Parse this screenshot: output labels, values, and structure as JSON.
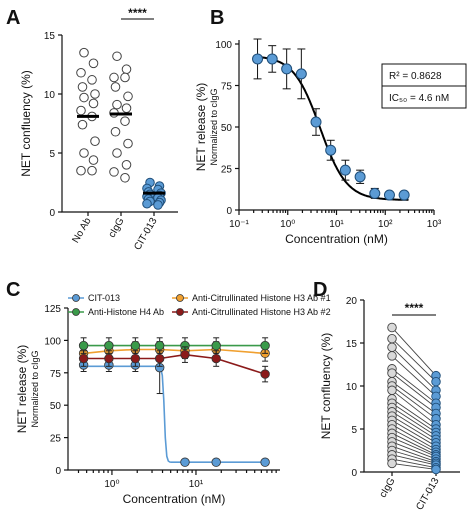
{
  "chart_data": [
    {
      "panel_letter": "A",
      "type": "scatter",
      "ylabel": "NET confluency (%)",
      "ylim": [
        0,
        15
      ],
      "yticks": [
        "0",
        "5",
        "10",
        "15"
      ],
      "categories": [
        "No Ab",
        "cIgG",
        "CIT-013"
      ],
      "significance": "****",
      "means": [
        8.1,
        8.3,
        1.6
      ],
      "points": [
        [
          13.5,
          12.6,
          11.8,
          11.2,
          10.6,
          10.0,
          9.7,
          9.2,
          8.6,
          8.1,
          7.4,
          6.0,
          5.0,
          4.4,
          3.5,
          3.5
        ],
        [
          13.2,
          12.1,
          11.4,
          11.4,
          10.6,
          9.8,
          9.1,
          8.8,
          8.4,
          7.7,
          6.8,
          5.8,
          5.0,
          4.0,
          3.4,
          2.9
        ],
        [
          2.5,
          2.2,
          2.0,
          1.9,
          1.7,
          1.6,
          1.5,
          1.4,
          1.3,
          1.2,
          1.1,
          1.0,
          0.9,
          0.8,
          0.7,
          0.6
        ]
      ]
    },
    {
      "panel_letter": "B",
      "type": "line",
      "xlabel": "Concentration (nM)",
      "ylabel": "NET release (%)",
      "ylabel_sub": "Normalized to cIgG",
      "xscale": "log",
      "xlim": [
        0.1,
        1000
      ],
      "ylim": [
        0,
        100
      ],
      "xticks": [
        "10⁻¹",
        "10⁰",
        "10¹",
        "10²",
        "10³"
      ],
      "yticks": [
        "0",
        "25",
        "50",
        "75",
        "100"
      ],
      "r2_text": "R² = 0.8628",
      "ic50_text": "IC₅₀ = 4.6 nM",
      "x": [
        0.24,
        0.48,
        0.95,
        1.9,
        3.8,
        7.6,
        15.2,
        30.5,
        61,
        122,
        244
      ],
      "y": [
        91,
        91,
        85,
        82,
        53,
        36,
        24,
        20,
        10,
        9,
        9
      ],
      "err": [
        12,
        8,
        12,
        15,
        8,
        6,
        6,
        4,
        3,
        2,
        2
      ],
      "fit": {
        "top": 93,
        "bottom": 6,
        "ic50": 4.6,
        "hill": 1.6
      }
    },
    {
      "panel_letter": "C",
      "type": "line",
      "xlabel": "Concentration (nM)",
      "ylabel": "NET release (%)",
      "ylabel_sub": "Normalized to cIgG",
      "xscale": "log",
      "xlim": [
        0.3,
        100
      ],
      "ylim": [
        0,
        125
      ],
      "xticks": [
        "10⁰",
        "10¹"
      ],
      "yticks": [
        "0",
        "25",
        "50",
        "75",
        "100",
        "125"
      ],
      "series": [
        {
          "name": "CIT-013",
          "color": "#5b9bd5",
          "x": [
            0.46,
            0.92,
            1.9,
            3.7,
            7.4,
            17.4,
            66.5
          ],
          "y": [
            81,
            81,
            81,
            79,
            6,
            6,
            6
          ],
          "err": [
            5,
            5,
            5,
            20,
            1,
            1,
            1
          ],
          "step": 4.2
        },
        {
          "name": "Anti-Citrullinated Histone H3 Ab #1",
          "color": "#f0a030",
          "x": [
            0.46,
            0.92,
            1.9,
            3.7,
            7.4,
            17.4,
            66.5
          ],
          "y": [
            90,
            92,
            93,
            93,
            92,
            93,
            90
          ],
          "err": [
            6,
            6,
            6,
            6,
            6,
            6,
            6
          ]
        },
        {
          "name": "Anti-Histone H4 Ab",
          "color": "#3a9a4a",
          "x": [
            0.46,
            0.92,
            1.9,
            3.7,
            7.4,
            17.4,
            66.5
          ],
          "y": [
            96,
            96,
            96,
            96,
            96,
            96,
            96
          ],
          "err": [
            6,
            6,
            6,
            6,
            6,
            6,
            6
          ]
        },
        {
          "name": "Anti-Citrullinated Histone H3 Ab #2",
          "color": "#8b1a1a",
          "x": [
            0.46,
            0.92,
            1.9,
            3.7,
            7.4,
            17.4,
            66.5
          ],
          "y": [
            86,
            86,
            86,
            86,
            89,
            86,
            74
          ],
          "err": [
            6,
            6,
            6,
            6,
            6,
            6,
            6
          ]
        }
      ]
    },
    {
      "panel_letter": "D",
      "type": "scatter",
      "ylabel": "NET confluency (%)",
      "ylim": [
        0,
        20
      ],
      "yticks": [
        "0",
        "5",
        "10",
        "15",
        "20"
      ],
      "categories": [
        "cIgG",
        "CIT-013"
      ],
      "significance": "****",
      "pairs": [
        [
          16.8,
          11.2
        ],
        [
          15.5,
          10.5
        ],
        [
          14.5,
          9.5
        ],
        [
          13.5,
          8.8
        ],
        [
          12.0,
          8.0
        ],
        [
          11.5,
          7.5
        ],
        [
          10.5,
          6.8
        ],
        [
          10.0,
          6.2
        ],
        [
          9.5,
          5.5
        ],
        [
          8.5,
          5.0
        ],
        [
          8.0,
          4.6
        ],
        [
          7.5,
          4.2
        ],
        [
          7.0,
          3.8
        ],
        [
          6.5,
          3.4
        ],
        [
          6.0,
          3.0
        ],
        [
          5.5,
          2.6
        ],
        [
          5.0,
          2.3
        ],
        [
          4.5,
          2.0
        ],
        [
          4.0,
          1.8
        ],
        [
          3.5,
          1.5
        ],
        [
          3.0,
          1.2
        ],
        [
          2.5,
          1.0
        ],
        [
          2.0,
          0.8
        ],
        [
          1.5,
          0.5
        ],
        [
          1.0,
          0.3
        ]
      ]
    }
  ]
}
